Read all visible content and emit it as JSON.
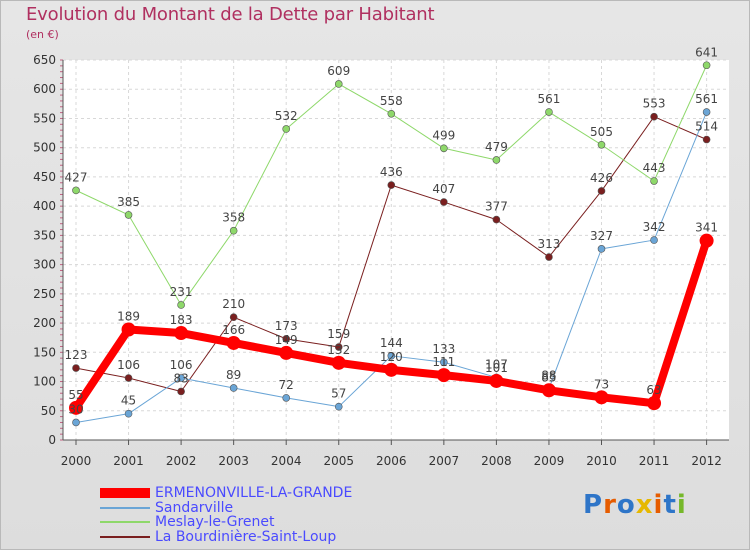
{
  "title": "Evolution du Montant de la Dette par Habitant",
  "unit": "(en €)",
  "logo": {
    "text": "Proxiti",
    "letters": [
      "P",
      "r",
      "o",
      "x",
      "i",
      "t",
      "i"
    ],
    "colors": [
      "#2e75c8",
      "#e65c00",
      "#2e75c8",
      "#e6b800",
      "#e65c00",
      "#2e75c8",
      "#76b82a"
    ]
  },
  "chart_data": {
    "type": "line",
    "x": [
      "2000",
      "2001",
      "2002",
      "2003",
      "2004",
      "2005",
      "2006",
      "2007",
      "2008",
      "2009",
      "2010",
      "2011",
      "2012"
    ],
    "ylim": [
      0,
      650
    ],
    "yticks": [
      0,
      50,
      100,
      150,
      200,
      250,
      300,
      350,
      400,
      450,
      500,
      550,
      600,
      650
    ],
    "grid": true,
    "legend_position": "bottom-left",
    "series": [
      {
        "name": "ERMENONVILLE-LA-GRANDE",
        "color": "#ff0000",
        "width": 8,
        "marker": 7,
        "values": [
          55,
          189,
          183,
          166,
          149,
          132,
          120,
          111,
          101,
          85,
          73,
          63,
          341
        ],
        "labels": [
          "55",
          "189",
          "183",
          "166",
          "149",
          "132",
          "120",
          "111",
          "101",
          "85",
          "73",
          "63",
          "341"
        ]
      },
      {
        "name": "Sandarville",
        "color": "#6aa5d6",
        "width": 1,
        "marker": 3.5,
        "values": [
          30,
          45,
          106,
          89,
          72,
          57,
          144,
          133,
          107,
          88,
          327,
          342,
          561
        ],
        "labels": [
          "30",
          "45",
          "106",
          "89",
          "72",
          "57",
          "144",
          "133",
          "107",
          "88",
          "327",
          "342",
          "561"
        ]
      },
      {
        "name": "Meslay-le-Grenet",
        "color": "#8ed86a",
        "width": 1,
        "marker": 3.5,
        "values": [
          427,
          385,
          231,
          358,
          532,
          609,
          558,
          499,
          479,
          561,
          505,
          443,
          641
        ],
        "labels": [
          "427",
          "385",
          "231",
          "358",
          "532",
          "609",
          "558",
          "499",
          "479",
          "561",
          "505",
          "443",
          "641"
        ]
      },
      {
        "name": "La Bourdinière-Saint-Loup",
        "color": "#7a1f1f",
        "width": 1,
        "marker": 3.5,
        "values": [
          123,
          106,
          83,
          210,
          173,
          159,
          436,
          407,
          377,
          313,
          426,
          553,
          514
        ],
        "labels": [
          "123",
          "106",
          "83",
          "210",
          "173",
          "159",
          "436",
          "407",
          "377",
          "313",
          "426",
          "553",
          "514"
        ]
      }
    ]
  }
}
